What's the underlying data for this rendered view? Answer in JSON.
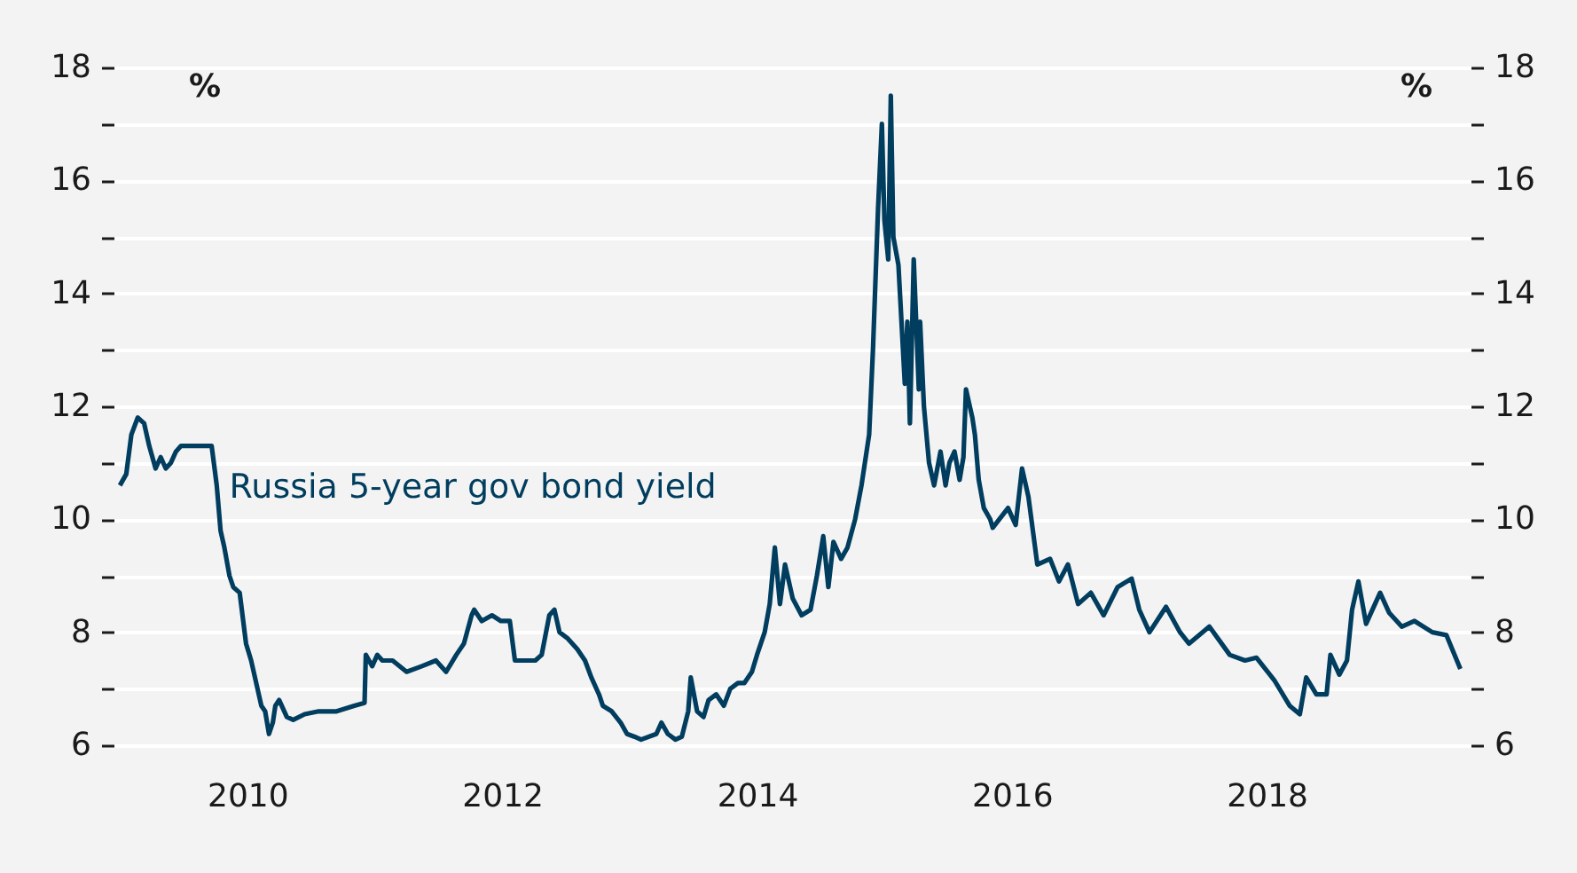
{
  "chart_data": {
    "type": "line",
    "ylabel": "%",
    "y2label": "%",
    "x": [
      2009.0,
      2009.05,
      2009.09,
      2009.14,
      2009.19,
      2009.23,
      2009.28,
      2009.32,
      2009.36,
      2009.4,
      2009.44,
      2009.48,
      2009.72,
      2009.76,
      2009.79,
      2009.82,
      2009.86,
      2009.89,
      2009.94,
      2009.99,
      2010.03,
      2010.07,
      2010.11,
      2010.14,
      2010.17,
      2010.2,
      2010.22,
      2010.25,
      2010.31,
      2010.36,
      2010.45,
      2010.56,
      2010.7,
      2010.84,
      2010.92,
      2010.93,
      2010.98,
      2011.02,
      2011.06,
      2011.14,
      2011.25,
      2011.37,
      2011.48,
      2011.56,
      2011.64,
      2011.7,
      2011.76,
      2011.78,
      2011.84,
      2011.92,
      2011.99,
      2012.06,
      2012.1,
      2012.17,
      2012.26,
      2012.31,
      2012.37,
      2012.41,
      2012.45,
      2012.51,
      2012.59,
      2012.65,
      2012.7,
      2012.76,
      2012.79,
      2012.86,
      2012.93,
      2012.98,
      2013.04,
      2013.09,
      2013.21,
      2013.25,
      2013.3,
      2013.36,
      2013.41,
      2013.46,
      2013.48,
      2013.53,
      2013.58,
      2013.62,
      2013.68,
      2013.74,
      2013.79,
      2013.85,
      2013.9,
      2013.96,
      2014.0,
      2014.06,
      2014.1,
      2014.14,
      2014.18,
      2014.22,
      2014.28,
      2014.35,
      2014.42,
      2014.47,
      2014.52,
      2014.56,
      2014.6,
      2014.66,
      2014.71,
      2014.77,
      2014.82,
      2014.88,
      2014.91,
      2014.95,
      2014.98,
      2015.0,
      2015.03,
      2015.05,
      2015.07,
      2015.11,
      2015.16,
      2015.18,
      2015.2,
      2015.23,
      2015.27,
      2015.28,
      2015.31,
      2015.35,
      2015.39,
      2015.44,
      2015.48,
      2015.51,
      2015.55,
      2015.59,
      2015.62,
      2015.64,
      2015.69,
      2015.71,
      2015.74,
      2015.78,
      2015.83,
      2015.85,
      2015.97,
      2016.03,
      2016.08,
      2016.13,
      2016.2,
      2016.3,
      2016.37,
      2016.44,
      2016.52,
      2016.62,
      2016.72,
      2016.83,
      2016.94,
      2017.0,
      2017.08,
      2017.21,
      2017.32,
      2017.39,
      2017.55,
      2017.71,
      2017.83,
      2017.92,
      2018.06,
      2018.18,
      2018.26,
      2018.31,
      2018.39,
      2018.47,
      2018.5,
      2018.57,
      2018.63,
      2018.67,
      2018.72,
      2018.78,
      2018.89,
      2018.96,
      2019.06,
      2019.16,
      2019.3,
      2019.41,
      2019.52
    ],
    "series": [
      {
        "name": "Russia 5-year gov bond yield",
        "color": "#003d5e",
        "values": [
          10.6,
          10.8,
          11.5,
          11.8,
          11.7,
          11.3,
          10.9,
          11.1,
          10.9,
          11.0,
          11.2,
          11.3,
          11.3,
          10.6,
          9.8,
          9.5,
          9.0,
          8.8,
          8.7,
          7.8,
          7.5,
          7.1,
          6.7,
          6.6,
          6.2,
          6.4,
          6.7,
          6.8,
          6.5,
          6.45,
          6.55,
          6.6,
          6.6,
          6.7,
          6.75,
          7.6,
          7.4,
          7.6,
          7.5,
          7.5,
          7.3,
          7.4,
          7.5,
          7.3,
          7.6,
          7.8,
          8.3,
          8.4,
          8.2,
          8.3,
          8.2,
          8.2,
          7.5,
          7.5,
          7.5,
          7.6,
          8.3,
          8.4,
          8.0,
          7.9,
          7.7,
          7.5,
          7.2,
          6.9,
          6.7,
          6.6,
          6.4,
          6.2,
          6.15,
          6.1,
          6.2,
          6.4,
          6.2,
          6.1,
          6.15,
          6.6,
          7.2,
          6.6,
          6.5,
          6.8,
          6.9,
          6.7,
          7.0,
          7.1,
          7.1,
          7.3,
          7.6,
          8.0,
          8.5,
          9.5,
          8.5,
          9.2,
          8.6,
          8.3,
          8.4,
          9.0,
          9.7,
          8.8,
          9.6,
          9.3,
          9.5,
          10.0,
          10.6,
          11.5,
          13.0,
          15.5,
          17.0,
          15.3,
          14.6,
          17.5,
          15.0,
          14.5,
          12.4,
          13.5,
          11.7,
          14.6,
          12.3,
          13.5,
          12.0,
          11.0,
          10.6,
          11.2,
          10.6,
          11.0,
          11.2,
          10.7,
          11.1,
          12.3,
          11.8,
          11.5,
          10.7,
          10.2,
          10.0,
          9.85,
          10.2,
          9.9,
          10.9,
          10.4,
          9.2,
          9.3,
          8.9,
          9.2,
          8.5,
          8.7,
          8.3,
          8.8,
          8.95,
          8.4,
          8.0,
          8.45,
          8.0,
          7.8,
          8.1,
          7.6,
          7.5,
          7.55,
          7.15,
          6.7,
          6.55,
          7.2,
          6.9,
          6.9,
          7.6,
          7.25,
          7.5,
          8.4,
          8.9,
          8.15,
          8.7,
          8.35,
          8.1,
          8.2,
          8.0,
          7.95,
          7.35
        ]
      }
    ],
    "xlim": [
      2008.95,
      2019.6
    ],
    "xticks": [
      2010,
      2012,
      2014,
      2016,
      2018
    ],
    "ylim": [
      6,
      18
    ],
    "yticks": [
      6,
      {
        "value": 7,
        "label": null
      },
      8,
      {
        "value": 9,
        "label": null
      },
      10,
      {
        "value": 11,
        "label": null
      },
      12,
      {
        "value": 13,
        "label": null
      },
      14,
      {
        "value": 15,
        "label": null
      },
      16,
      {
        "value": 17,
        "label": null
      },
      18
    ],
    "y2lim": [
      6,
      18
    ],
    "y2ticks": [
      6,
      {
        "value": 7,
        "label": null
      },
      8,
      {
        "value": 9,
        "label": null
      },
      10,
      {
        "value": 11,
        "label": null
      },
      12,
      {
        "value": 13,
        "label": null
      },
      14,
      {
        "value": 15,
        "label": null
      },
      16,
      {
        "value": 17,
        "label": null
      },
      18
    ],
    "grid": "y",
    "marker": "none",
    "line_style": "solid"
  }
}
